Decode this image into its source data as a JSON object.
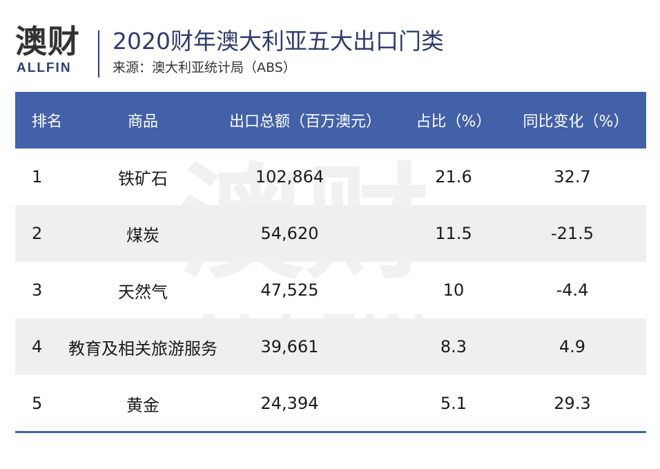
{
  "brand": {
    "logo_cn": "澳财",
    "logo_en": "ALLFIN"
  },
  "header": {
    "title": "2020财年澳大利亚五大出口门类",
    "source": "来源：澳大利亚统计局（ABS）"
  },
  "table": {
    "columns": [
      "排名",
      "商品",
      "出口总额（百万澳元）",
      "占比（%）",
      "同比变化（%）"
    ],
    "rows": [
      {
        "rank": "1",
        "item": "铁矿石",
        "amount": "102,864",
        "share": "21.6",
        "change": "32.7"
      },
      {
        "rank": "2",
        "item": "煤炭",
        "amount": "54,620",
        "share": "11.5",
        "change": "-21.5"
      },
      {
        "rank": "3",
        "item": "天然气",
        "amount": "47,525",
        "share": "10",
        "change": "-4.4"
      },
      {
        "rank": "4",
        "item": "教育及相关旅游服务",
        "amount": "39,661",
        "share": "8.3",
        "change": "4.9"
      },
      {
        "rank": "5",
        "item": "黄金",
        "amount": "24,394",
        "share": "5.1",
        "change": "29.3"
      }
    ]
  },
  "watermark": {
    "cn": "澳财",
    "en": "ALLFIN"
  },
  "colors": {
    "header_bg": "#4361a8",
    "title_text": "#2f3b6e",
    "logo_accent": "#c8283d",
    "row_shade": "#efefef"
  }
}
